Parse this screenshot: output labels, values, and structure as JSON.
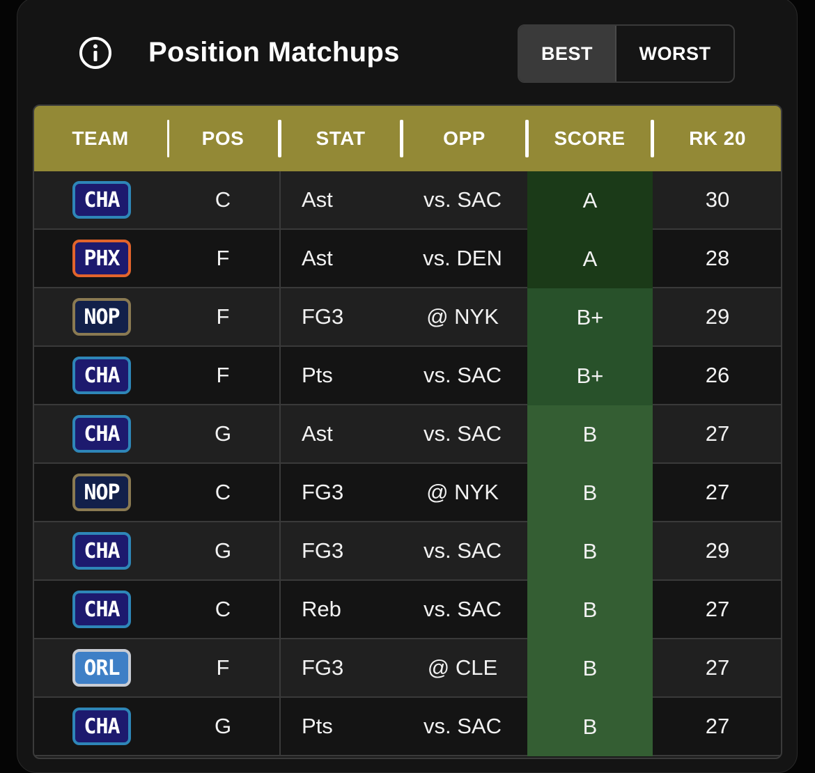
{
  "header": {
    "title": "Position Matchups",
    "toggle": {
      "best_label": "BEST",
      "worst_label": "WORST",
      "selected": "BEST"
    }
  },
  "table": {
    "columns": [
      "TEAM",
      "POS",
      "STAT",
      "OPP",
      "SCORE",
      "RK 20"
    ],
    "rows": [
      {
        "team": "CHA",
        "pos": "C",
        "stat": "Ast",
        "opp": "vs. SAC",
        "score": "A",
        "rank": "30"
      },
      {
        "team": "PHX",
        "pos": "F",
        "stat": "Ast",
        "opp": "vs. DEN",
        "score": "A",
        "rank": "28"
      },
      {
        "team": "NOP",
        "pos": "F",
        "stat": "FG3",
        "opp": "@ NYK",
        "score": "B+",
        "rank": "29"
      },
      {
        "team": "CHA",
        "pos": "F",
        "stat": "Pts",
        "opp": "vs. SAC",
        "score": "B+",
        "rank": "26"
      },
      {
        "team": "CHA",
        "pos": "G",
        "stat": "Ast",
        "opp": "vs. SAC",
        "score": "B",
        "rank": "27"
      },
      {
        "team": "NOP",
        "pos": "C",
        "stat": "FG3",
        "opp": "@ NYK",
        "score": "B",
        "rank": "27"
      },
      {
        "team": "CHA",
        "pos": "G",
        "stat": "FG3",
        "opp": "vs. SAC",
        "score": "B",
        "rank": "29"
      },
      {
        "team": "CHA",
        "pos": "C",
        "stat": "Reb",
        "opp": "vs. SAC",
        "score": "B",
        "rank": "27"
      },
      {
        "team": "ORL",
        "pos": "F",
        "stat": "FG3",
        "opp": "@ CLE",
        "score": "B",
        "rank": "27"
      },
      {
        "team": "CHA",
        "pos": "G",
        "stat": "Pts",
        "opp": "vs. SAC",
        "score": "B",
        "rank": "27"
      }
    ]
  },
  "colors": {
    "header_bar": "#938936",
    "score_A": "#1b3a18",
    "score_Bplus": "#28512a",
    "score_B": "#345e33",
    "team_badges": {
      "CHA": {
        "bg": "#1d1a6e",
        "border": "#2e86b8"
      },
      "PHX": {
        "bg": "#1d1a6e",
        "border": "#e2642c"
      },
      "NOP": {
        "bg": "#12204a",
        "border": "#8a7a52"
      },
      "ORL": {
        "bg": "#3e7fc6",
        "border": "#c8ccd4"
      }
    }
  },
  "icons": {
    "info": "info-circle-icon"
  }
}
